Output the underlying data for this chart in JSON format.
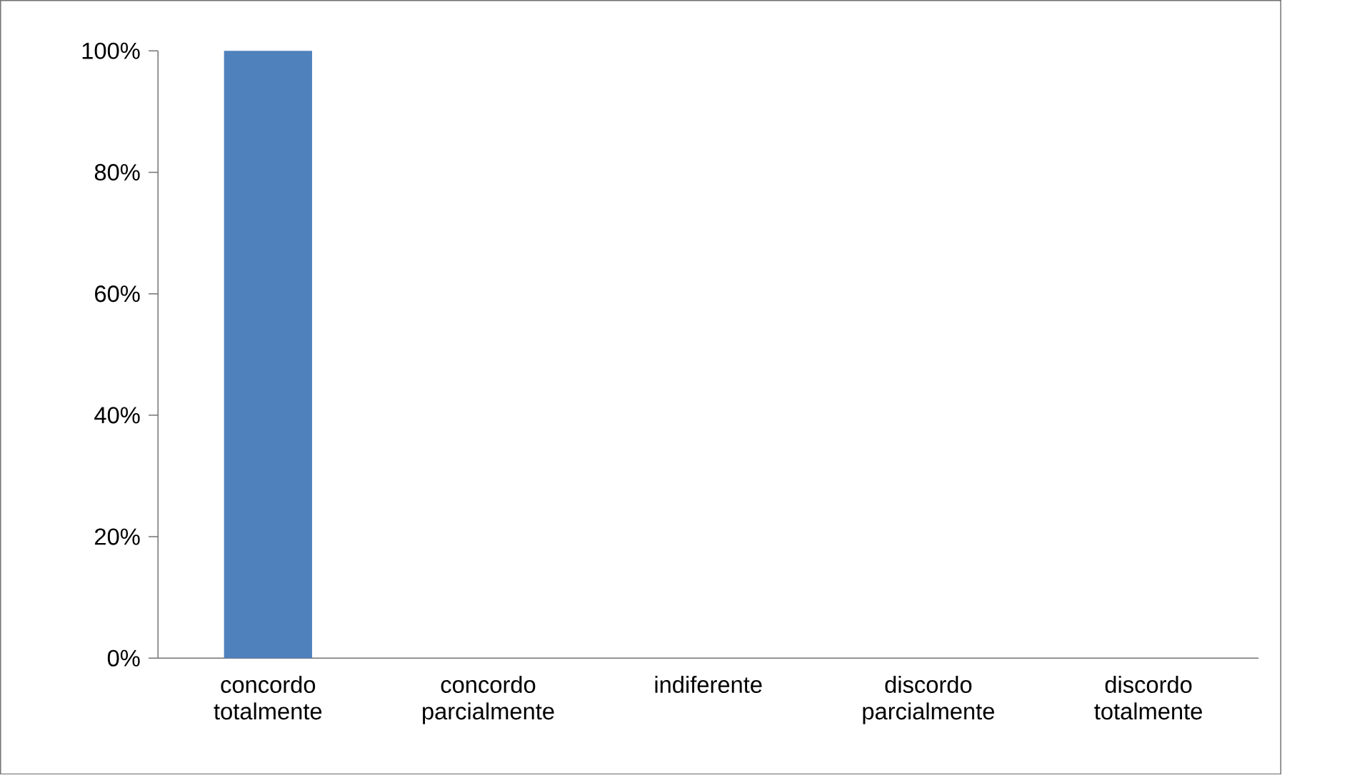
{
  "chart_data": {
    "type": "bar",
    "categories": [
      "concordo totalmente",
      "concordo parcialmente",
      "indiferente",
      "discordo parcialmente",
      "discordo totalmente"
    ],
    "values": [
      100,
      0,
      0,
      0,
      0
    ],
    "color": "#4f81bd",
    "ylim": [
      0,
      100
    ],
    "yticks": [
      {
        "value": 0,
        "label": "0%"
      },
      {
        "value": 20,
        "label": "20%"
      },
      {
        "value": 40,
        "label": "40%"
      },
      {
        "value": 60,
        "label": "60%"
      },
      {
        "value": 80,
        "label": "80%"
      },
      {
        "value": 100,
        "label": "100%"
      }
    ]
  }
}
